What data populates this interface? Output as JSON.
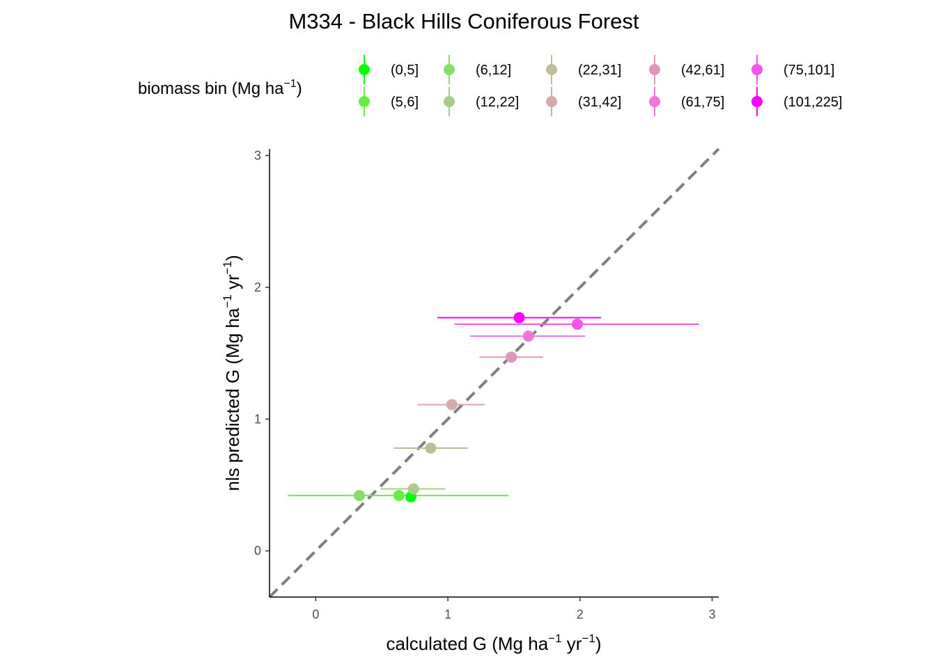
{
  "chart_data": {
    "type": "scatter",
    "title": "M334 - Black Hills Coniferous Forest",
    "xlabel": {
      "base": "calculated G (Mg ha",
      "sup1": "−1",
      "mid": " yr",
      "sup2": "−1",
      "end": ")"
    },
    "ylabel": {
      "base": "nls predicted G (Mg ha",
      "sup1": "−1",
      "mid": " yr",
      "sup2": "−1",
      "end": ")"
    },
    "xlim": [
      -0.35,
      3.05
    ],
    "ylim": [
      -0.35,
      3.05
    ],
    "x_ticks": [
      0,
      1,
      2,
      3
    ],
    "y_ticks": [
      0,
      1,
      2,
      3
    ],
    "x_tick_labels": [
      "0",
      "1",
      "2",
      "3"
    ],
    "y_tick_labels": [
      "0",
      "1",
      "2",
      "3"
    ],
    "reference_line": {
      "slope": 1,
      "intercept": 0,
      "style": "dashed",
      "color": "#7f7f7f"
    },
    "legend": {
      "title": {
        "base": "biomass bin (Mg ha",
        "sup": "−1",
        "end": ")"
      },
      "placement": "top"
    },
    "series": [
      {
        "name": "(0,5]",
        "color": "#00ff00",
        "x": 0.72,
        "y": 0.41,
        "xmin": 0.72,
        "xmax": 0.72
      },
      {
        "name": "(5,6]",
        "color": "#66ee44",
        "x": 0.63,
        "y": 0.42,
        "xmin": -0.21,
        "xmax": 1.46
      },
      {
        "name": "(6,12]",
        "color": "#88dd66",
        "x": 0.33,
        "y": 0.42,
        "xmin": 0.2,
        "xmax": 0.47
      },
      {
        "name": "(12,22]",
        "color": "#aacc88",
        "x": 0.74,
        "y": 0.47,
        "xmin": 0.49,
        "xmax": 0.98
      },
      {
        "name": "(22,31]",
        "color": "#c0bc98",
        "x": 0.87,
        "y": 0.78,
        "xmin": 0.59,
        "xmax": 1.15
      },
      {
        "name": "(31,42]",
        "color": "#d6aaaa",
        "x": 1.03,
        "y": 1.11,
        "xmin": 0.77,
        "xmax": 1.28
      },
      {
        "name": "(42,61]",
        "color": "#e095bb",
        "x": 1.48,
        "y": 1.47,
        "xmin": 1.24,
        "xmax": 1.72
      },
      {
        "name": "(61,75]",
        "color": "#ee77d8",
        "x": 1.61,
        "y": 1.63,
        "xmin": 1.17,
        "xmax": 2.04
      },
      {
        "name": "(75,101]",
        "color": "#f752ea",
        "x": 1.98,
        "y": 1.72,
        "xmin": 1.05,
        "xmax": 2.9
      },
      {
        "name": "(101,225]",
        "color": "#ff00ff",
        "x": 1.54,
        "y": 1.77,
        "xmin": 0.92,
        "xmax": 2.16
      }
    ]
  }
}
